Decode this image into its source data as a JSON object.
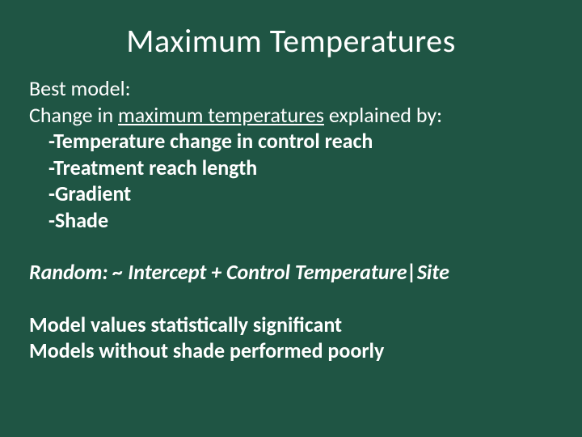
{
  "colors": {
    "background": "#1f5544",
    "text": "#ffffff"
  },
  "typography": {
    "title_fontsize": 40,
    "body_fontsize": 26,
    "font_family": "Calibri"
  },
  "title": "Maximum Temperatures",
  "body": {
    "line1_normal": "Best model:",
    "line2_prefix": "Change in ",
    "line2_underlined": "maximum temperatures",
    "line2_suffix": " explained by:",
    "bullets": [
      "-Temperature change in control reach",
      "-Treatment reach length",
      "-Gradient",
      "-Shade"
    ],
    "random_line": "Random:  ~ Intercept + Control Temperature|Site",
    "closing": [
      "Model values statistically significant",
      "Models without shade performed poorly"
    ]
  }
}
